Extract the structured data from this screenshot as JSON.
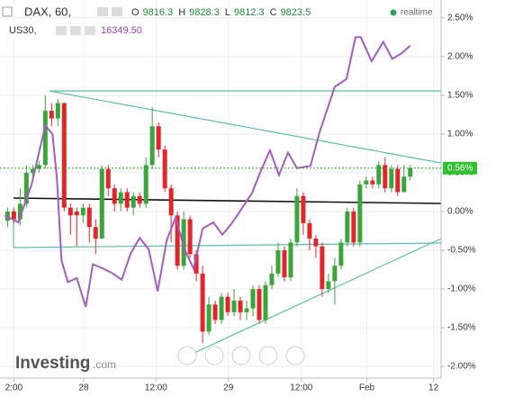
{
  "chart_data": {
    "type": "candlestick",
    "header": {
      "symbol": "DAX, 60,",
      "ohlc": [
        {
          "label": "O",
          "value": "9816.3"
        },
        {
          "label": "H",
          "value": "9828.3"
        },
        {
          "label": "L",
          "value": "9812.3"
        },
        {
          "label": "C",
          "value": "9823.5"
        }
      ],
      "status": "realtime",
      "compare_symbol": "US30,",
      "compare_value": "16349.50"
    },
    "logo": {
      "main": "Investing",
      "suffix": ".com"
    },
    "up_color": "#3ba53b",
    "down_color": "#e0262b",
    "x": [
      0,
      1,
      2,
      3,
      4,
      5,
      6,
      7,
      8,
      9,
      10,
      11,
      12,
      13,
      14,
      15,
      16,
      17,
      18,
      19,
      20,
      21,
      22,
      23,
      24,
      25,
      26,
      27,
      28,
      29,
      30,
      31,
      32,
      33,
      34,
      35,
      36,
      37,
      38,
      39,
      40,
      41,
      42,
      43,
      44,
      45,
      46,
      47,
      48,
      49,
      50,
      51,
      52,
      53,
      54,
      55,
      56,
      57,
      58,
      59,
      60,
      61,
      62,
      63,
      64
    ],
    "open": [
      -0.12,
      0.0,
      -0.1,
      0.1,
      0.5,
      0.55,
      0.6,
      1.3,
      1.2,
      1.4,
      0.05,
      0.0,
      -0.05,
      0.05,
      -0.2,
      -0.35,
      0.55,
      0.3,
      0.1,
      0.25,
      0.05,
      0.2,
      0.1,
      0.6,
      1.1,
      0.8,
      0.3,
      -0.05,
      -0.7,
      -0.1,
      -0.55,
      -0.8,
      -1.55,
      -1.2,
      -1.4,
      -1.1,
      -1.3,
      -1.15,
      -1.3,
      -1.25,
      -1.0,
      -1.4,
      -0.95,
      -0.8,
      -0.5,
      -0.85,
      -0.4,
      0.2,
      -0.15,
      -0.35,
      -0.45,
      -1.0,
      -0.9,
      -0.7,
      -0.4,
      0.0,
      -0.4,
      0.35,
      0.4,
      0.35,
      0.6,
      0.3,
      0.55,
      0.25,
      0.45
    ],
    "high": [
      0.05,
      0.05,
      0.3,
      0.6,
      0.6,
      0.65,
      1.5,
      1.4,
      1.45,
      1.4,
      0.1,
      0.05,
      0.1,
      0.1,
      -0.1,
      0.6,
      0.6,
      0.35,
      0.3,
      0.3,
      0.25,
      0.25,
      0.7,
      1.35,
      1.15,
      0.85,
      0.35,
      0.0,
      0.0,
      -0.05,
      -0.5,
      -0.7,
      -1.1,
      -1.15,
      -1.05,
      -1.05,
      -1.0,
      -1.1,
      -1.15,
      -0.95,
      -0.95,
      -0.9,
      -0.7,
      -0.4,
      -0.45,
      -0.35,
      0.3,
      0.25,
      -0.1,
      -0.3,
      -0.4,
      -0.8,
      -0.6,
      -0.35,
      0.05,
      0.05,
      0.4,
      0.45,
      0.45,
      0.65,
      0.7,
      0.6,
      0.6,
      0.6,
      0.6
    ],
    "low": [
      -0.2,
      -0.15,
      -0.18,
      0.05,
      0.45,
      0.5,
      0.55,
      1.1,
      1.1,
      0.0,
      -0.3,
      -0.45,
      -0.15,
      -0.4,
      -0.55,
      -0.35,
      0.2,
      0.0,
      0.0,
      0.0,
      -0.05,
      0.05,
      0.05,
      0.55,
      0.7,
      0.25,
      -0.4,
      -0.75,
      -0.75,
      -0.6,
      -0.9,
      -1.7,
      -1.6,
      -1.45,
      -1.45,
      -1.35,
      -1.35,
      -1.4,
      -1.4,
      -1.35,
      -1.45,
      -1.45,
      -1.0,
      -0.85,
      -0.9,
      -0.9,
      -0.45,
      -0.3,
      -0.5,
      -0.6,
      -1.1,
      -1.05,
      -1.2,
      -0.75,
      -0.45,
      -0.45,
      -0.45,
      0.3,
      0.3,
      0.3,
      0.25,
      0.25,
      0.2,
      0.25,
      0.4
    ],
    "close": [
      0.0,
      -0.1,
      0.1,
      0.5,
      0.55,
      0.6,
      1.3,
      1.2,
      1.4,
      0.05,
      -0.05,
      -0.05,
      0.05,
      -0.2,
      -0.35,
      0.55,
      0.3,
      0.1,
      0.25,
      0.05,
      0.2,
      0.1,
      0.6,
      1.1,
      0.8,
      0.3,
      -0.05,
      -0.7,
      -0.1,
      -0.55,
      -0.8,
      -1.55,
      -1.2,
      -1.4,
      -1.1,
      -1.3,
      -1.15,
      -1.3,
      -1.25,
      -1.0,
      -1.4,
      -0.95,
      -0.8,
      -0.5,
      -0.85,
      -0.4,
      0.2,
      -0.15,
      -0.35,
      -0.45,
      -1.0,
      -0.9,
      -0.7,
      -0.4,
      0.0,
      -0.4,
      0.35,
      0.4,
      0.35,
      0.6,
      0.3,
      0.55,
      0.25,
      0.45,
      0.56
    ],
    "overlay": {
      "name": "US30",
      "color": "#a45cc0",
      "x": [
        -0.43,
        1.71,
        3.86,
        6.0,
        7.14,
        7.86,
        8.57,
        9.57,
        11.0,
        12.43,
        13.57,
        15.29,
        16.71,
        18.14,
        19.57,
        21.0,
        22.43,
        23.86,
        25.29,
        26.71,
        28.14,
        29.57,
        31.0,
        32.71,
        34.14,
        35.57,
        37.0,
        38.86,
        40.29,
        41.71,
        43.14,
        44.57,
        46.0,
        48.14,
        49.57,
        52.0,
        53.86,
        55.29,
        56.14,
        57.86,
        59.71,
        61.14,
        62.57,
        64.0
      ],
      "values": [
        -0.05,
        -0.14,
        0.36,
        1.11,
        1.0,
        0.42,
        -0.63,
        -0.91,
        -0.86,
        -1.23,
        -0.68,
        -0.74,
        -0.8,
        -0.88,
        -0.54,
        -0.34,
        -0.49,
        -1.03,
        -0.37,
        -0.08,
        -0.49,
        -0.74,
        -0.22,
        -0.14,
        -0.3,
        -0.16,
        0.01,
        0.24,
        0.53,
        0.79,
        0.47,
        0.76,
        0.56,
        0.59,
        1.02,
        1.61,
        1.71,
        2.25,
        2.25,
        1.94,
        2.19,
        1.97,
        2.04,
        2.14
      ]
    },
    "last_price": {
      "value": 0.56,
      "label": "0.56%"
    },
    "xlim": [
      -1.2,
      68.9
    ],
    "xticks": [
      {
        "value": 1,
        "label": "2:00"
      },
      {
        "value": 12.1,
        "label": "28"
      },
      {
        "value": 23.6,
        "label": "12:00"
      },
      {
        "value": 35.1,
        "label": "29"
      },
      {
        "value": 46.7,
        "label": "12:00"
      },
      {
        "value": 57.1,
        "label": "Feb"
      },
      {
        "value": 67.7,
        "label": "12"
      }
    ],
    "ylim": [
      -2.15,
      2.73
    ],
    "yticks": [
      {
        "value": 2.5,
        "label": "2.50%"
      },
      {
        "value": 2.0,
        "label": "2.00%"
      },
      {
        "value": 1.5,
        "label": "1.50%"
      },
      {
        "value": 1.0,
        "label": "1.00%"
      },
      {
        "value": 0.5,
        "label": "0.50%"
      },
      {
        "value": 0.0,
        "label": "0.00%"
      },
      {
        "value": -0.5,
        "label": "-0.50%"
      },
      {
        "value": -1.0,
        "label": "-1.00%"
      },
      {
        "value": -1.5,
        "label": "-1.50%"
      },
      {
        "value": -2.0,
        "label": "-2.00%"
      }
    ],
    "grid": true
  }
}
